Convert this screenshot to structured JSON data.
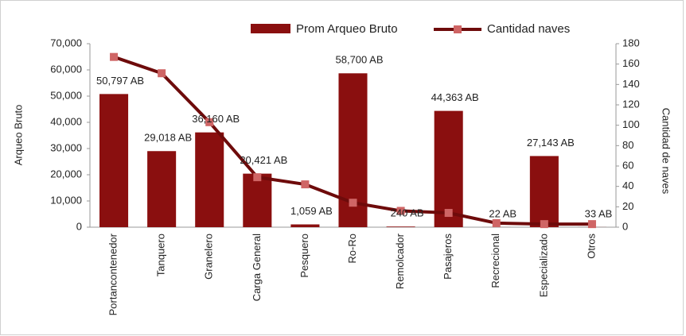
{
  "chart_data": {
    "type": "bar_line",
    "categories": [
      "Portancontenedor",
      "Tanquero",
      "Granelero",
      "Carga General",
      "Pesquero",
      "Ro-Ro",
      "Remolcador",
      "Pasajeros",
      "Recrecional",
      "Especializado",
      "Otros"
    ],
    "ylabel": "Arqueo Bruto",
    "y2label": "Cantidad de naves",
    "series": [
      {
        "name": "Prom Arqueo Bruto",
        "color": "#8a0f0f",
        "type": "bar",
        "values": [
          50797,
          29018,
          36160,
          20421,
          1059,
          58700,
          240,
          44363,
          22,
          27143,
          33
        ],
        "value_labels": [
          "50,797  AB",
          "29,018  AB",
          "36,160  AB",
          "20,421  AB",
          "1,059  AB",
          "58,700  AB",
          "240  AB",
          "44,363  AB",
          "22  AB",
          "27,143  AB",
          "33  AB"
        ]
      },
      {
        "name": "Cantidad naves",
        "color": "#6e0b0b",
        "marker_color": "#cf6565",
        "type": "line",
        "axis": "y2",
        "values": [
          167,
          151,
          103,
          49,
          42,
          24,
          16,
          14,
          4,
          3,
          3
        ]
      }
    ],
    "ylim": [
      0,
      70000
    ],
    "yticks": [
      0,
      {
        "value": 10000,
        "label": "10,000"
      },
      {
        "value": 20000,
        "label": "20,000"
      },
      {
        "value": 30000,
        "label": "30,000"
      },
      {
        "value": 40000,
        "label": "40,000"
      },
      {
        "value": 50000,
        "label": "50,000"
      },
      {
        "value": 60000,
        "label": "60,000"
      },
      {
        "value": 70000,
        "label": "70,000"
      }
    ],
    "y2lim": [
      0,
      180
    ],
    "y2ticks": [
      0,
      20,
      40,
      60,
      80,
      100,
      120,
      140,
      160,
      180
    ],
    "grid": false,
    "legend": "top"
  }
}
